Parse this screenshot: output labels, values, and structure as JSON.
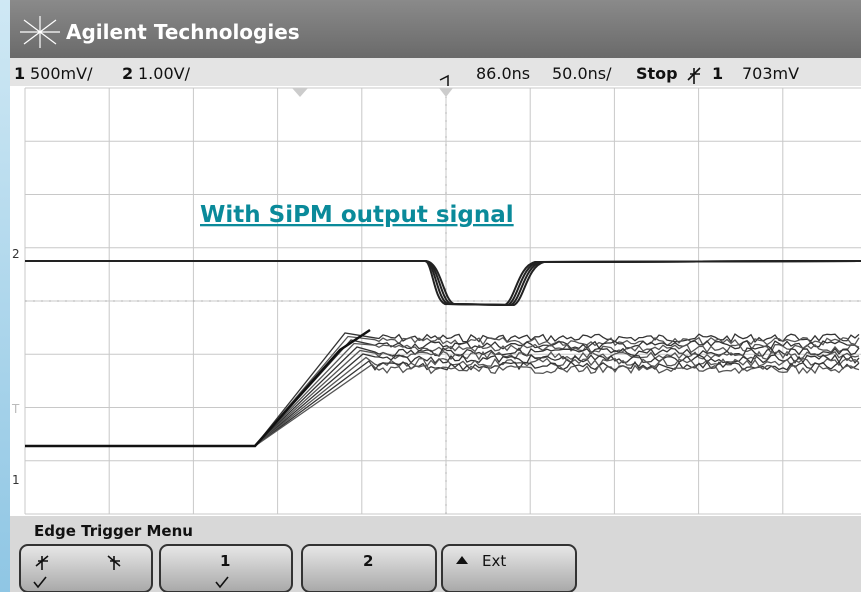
{
  "header": {
    "brand": "Agilent Technologies"
  },
  "status": {
    "ch1_number": "1",
    "ch1_scale": "500mV/",
    "ch2_number": "2",
    "ch2_scale": "1.00V/",
    "delay": "86.0ns",
    "timebase": "50.0ns/",
    "run_state": "Stop",
    "trigger_source": "1",
    "trigger_level": "703mV"
  },
  "markers": {
    "ch2": "2",
    "trigger": "T",
    "ch1": "1"
  },
  "annotation": "With SiPM output signal",
  "menu": {
    "title": "Edge Trigger Menu",
    "softkeys": [
      "1",
      "2",
      "Ext"
    ]
  }
}
